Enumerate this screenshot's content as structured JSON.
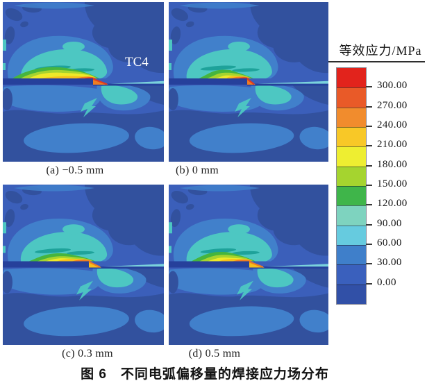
{
  "figure": {
    "title": "图 6　不同电弧偏移量的焊接应力场分布",
    "panels": [
      {
        "id": "a",
        "caption": "(a) −0.5 mm",
        "label": "TC4"
      },
      {
        "id": "b",
        "caption": "(b) 0 mm",
        "label": ""
      },
      {
        "id": "c",
        "caption": "(c) 0.3 mm",
        "label": ""
      },
      {
        "id": "d",
        "caption": "(d) 0.5 mm",
        "label": ""
      }
    ]
  },
  "colorbar": {
    "title": "等效应力/MPa",
    "unit": "MPa",
    "tick_labels": [
      "300.00",
      "270.00",
      "240.00",
      "210.00",
      "180.00",
      "150.00",
      "120.00",
      "90.00",
      "60.00",
      "30.00",
      "0.00"
    ],
    "segment_colors_top_to_bottom": [
      "#e2231c",
      "#e95a28",
      "#f18c2d",
      "#f8c827",
      "#eeee31",
      "#a5d42f",
      "#3fb54a",
      "#7ed3bf",
      "#66cbdf",
      "#3f7fca",
      "#3a60bd",
      "#3150a7"
    ]
  },
  "palette": {
    "panel_background": "#3b5fba",
    "dark_blob": "#32519e",
    "plate": "#26409b",
    "sky": "#4180cb",
    "teal": "#4dc7c2",
    "teal_dark": "#1ea29a",
    "cyan": "#7ad2dc",
    "green": "#46b53e",
    "yellow_green": "#a6d42f",
    "yellow": "#eeે929",
    "yellow_fix": "#eee929",
    "amber": "#f6c01a",
    "orange": "#ef7d22",
    "red": "#e23a1e",
    "label_text": "#ffffff"
  },
  "chart_data": {
    "type": "heatmap",
    "title": "图 6　不同电弧偏移量的焊接应力场分布",
    "legend_title": "等效应力/MPa",
    "legend_position": "right",
    "scale_ticks": [
      300.0,
      270.0,
      240.0,
      210.0,
      180.0,
      150.0,
      120.0,
      90.0,
      60.0,
      30.0,
      0.0
    ],
    "scale_range_mpa": [
      0,
      300
    ],
    "material_label": "TC4",
    "panels": [
      {
        "caption": "(a) −0.5 mm",
        "arc_offset_mm": -0.5,
        "peak_stress_band_mpa": "270–300 at weld step"
      },
      {
        "caption": "(b) 0 mm",
        "arc_offset_mm": 0,
        "peak_stress_band_mpa": "240–300 localized at weld step"
      },
      {
        "caption": "(c) 0.3 mm",
        "arc_offset_mm": 0.3,
        "peak_stress_band_mpa": "210–240 at weld step"
      },
      {
        "caption": "(d) 0.5 mm",
        "arc_offset_mm": 0.5,
        "peak_stress_band_mpa": "210–240 at weld step"
      }
    ]
  }
}
